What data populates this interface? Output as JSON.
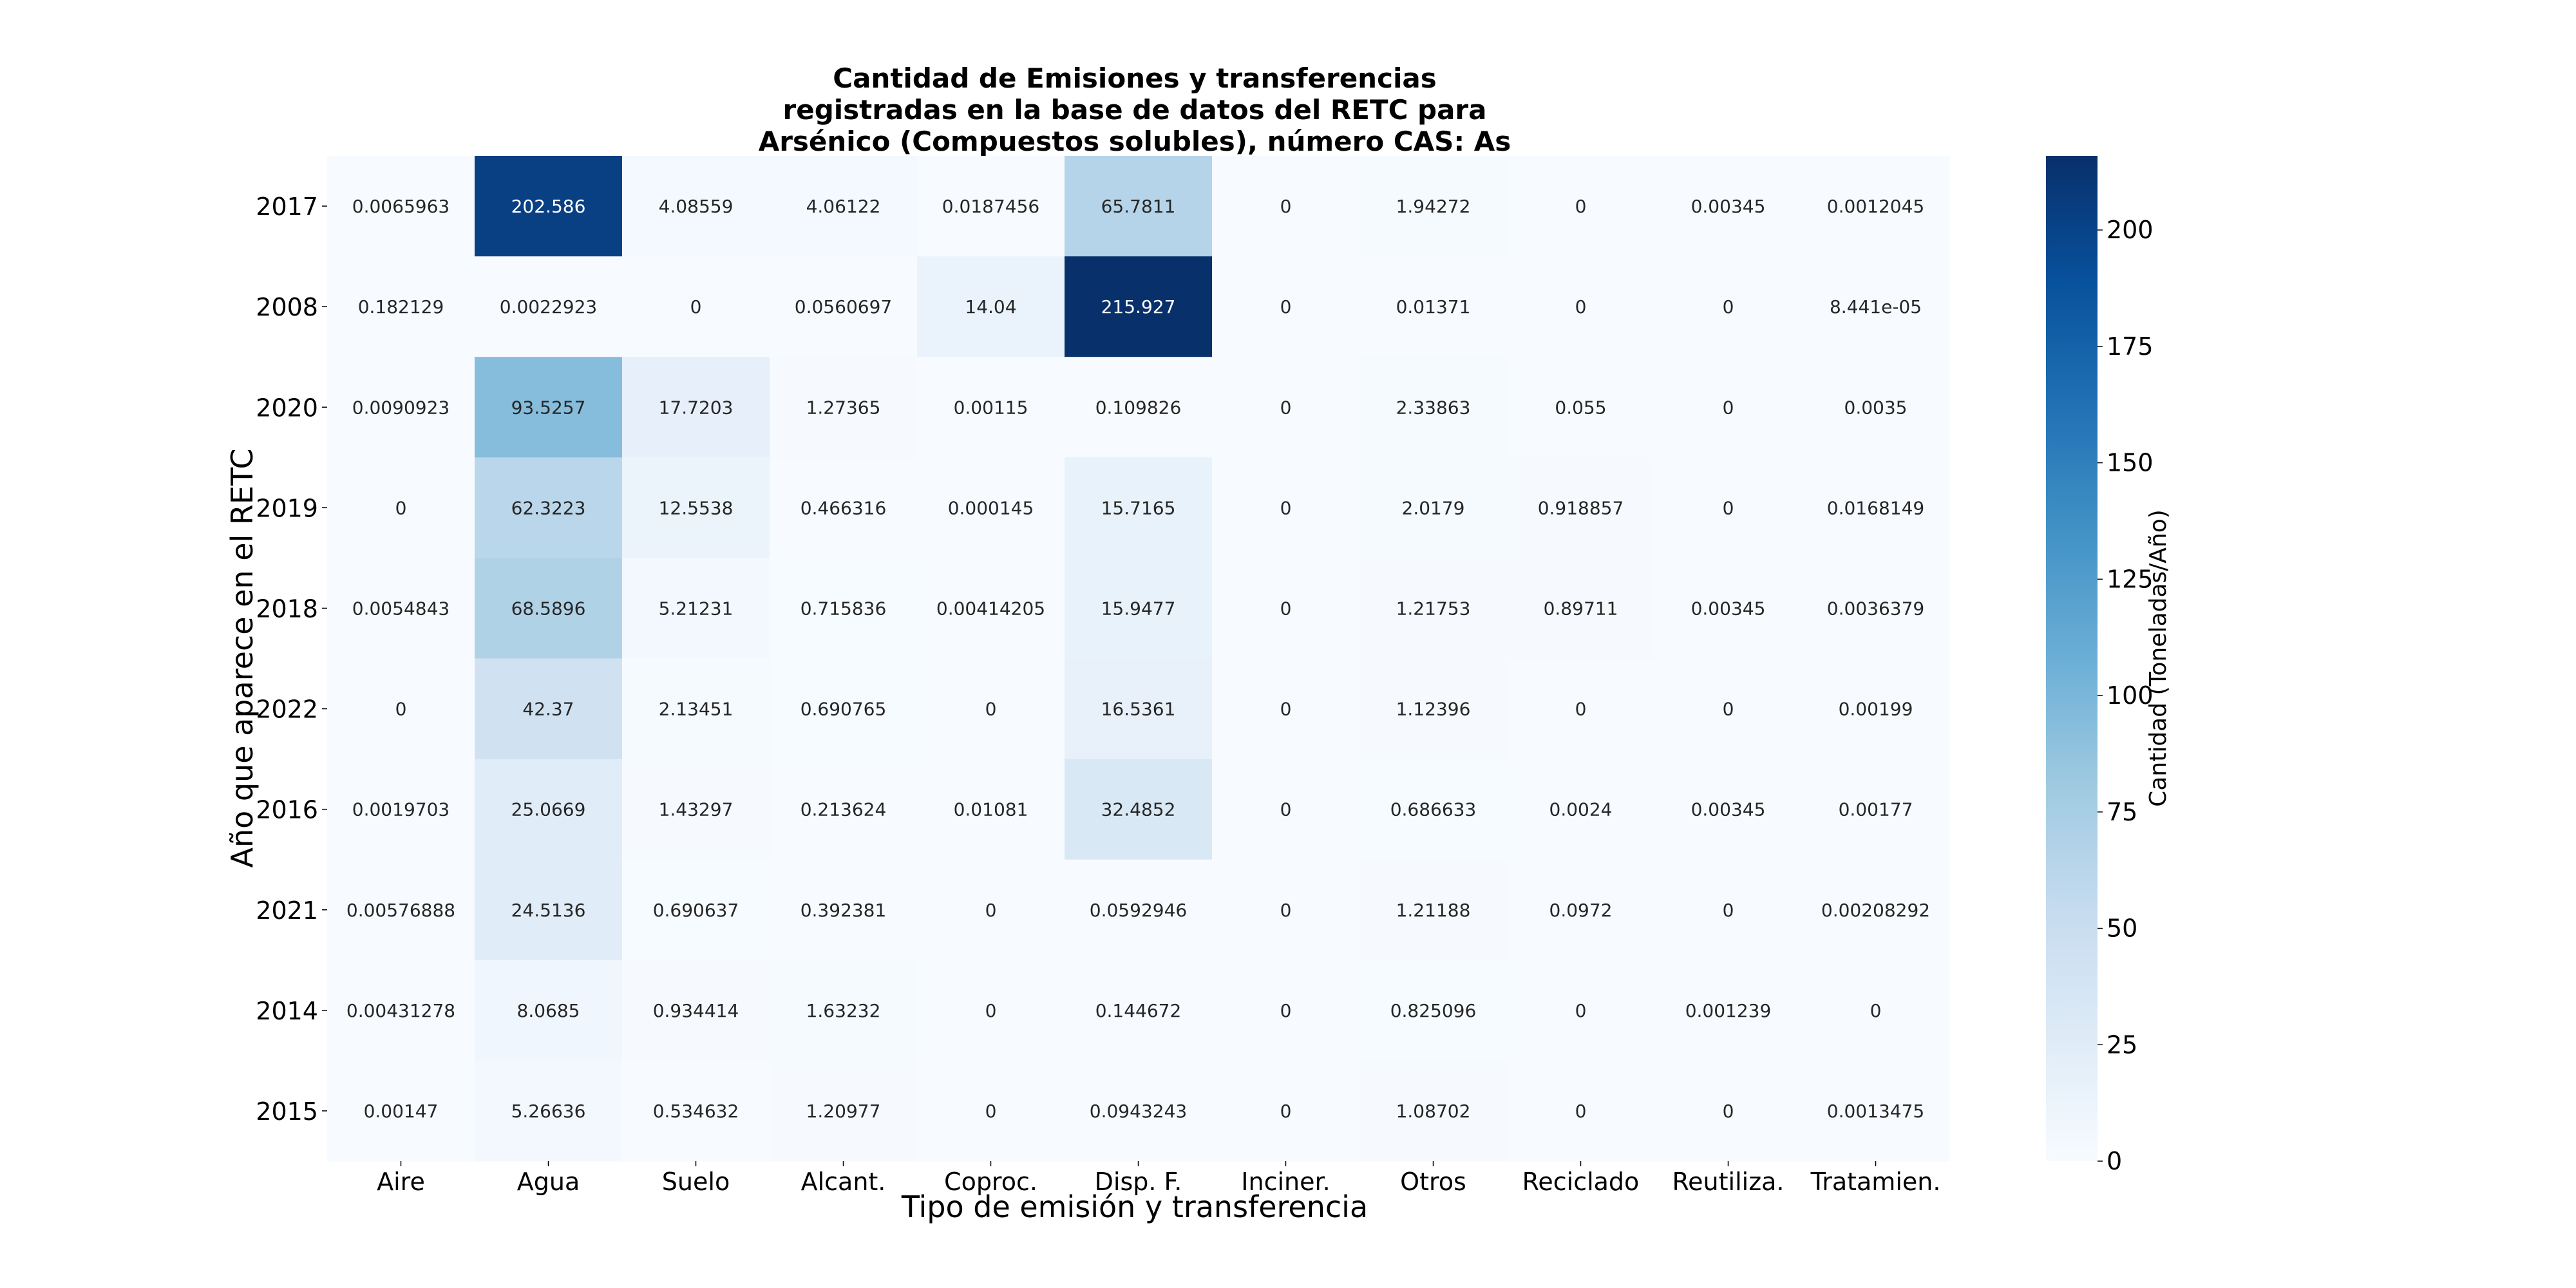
{
  "chart_data": {
    "type": "heatmap",
    "title": [
      "Cantidad de Emisiones y transferencias",
      "registradas en la base de datos del RETC para",
      "Arsénico (Compuestos solubles), número CAS: As"
    ],
    "xlabel": "Tipo de emisión y transferencia",
    "ylabel": "Año que aparece en el RETC",
    "colorbar_label": "Cantidad (Toneladas/Año)",
    "colormap": "Blues",
    "vmin": 0,
    "vmax": 215.927,
    "colorbar_ticks": [
      0,
      25,
      50,
      75,
      100,
      125,
      150,
      175,
      200
    ],
    "columns": [
      "Aire",
      "Agua",
      "Suelo",
      "Alcant.",
      "Coproc.",
      "Disp. F.",
      "Inciner.",
      "Otros",
      "Reciclado",
      "Reutiliza.",
      "Tratamien."
    ],
    "rows": [
      "2017",
      "2008",
      "2020",
      "2019",
      "2018",
      "2022",
      "2016",
      "2021",
      "2014",
      "2015"
    ],
    "values": [
      [
        0.0065963,
        202.586,
        4.08559,
        4.06122,
        0.0187456,
        65.7811,
        0,
        1.94272,
        0,
        0.00345,
        0.0012045
      ],
      [
        0.182129,
        0.0022923,
        0,
        0.0560697,
        14.04,
        215.927,
        0,
        0.01371,
        0,
        0,
        8.441e-05
      ],
      [
        0.0090923,
        93.5257,
        17.7203,
        1.27365,
        0.00115,
        0.109826,
        0,
        2.33863,
        0.055,
        0,
        0.0035
      ],
      [
        0,
        62.3223,
        12.5538,
        0.466316,
        0.000145,
        15.7165,
        0,
        2.0179,
        0.918857,
        0,
        0.0168149
      ],
      [
        0.0054843,
        68.5896,
        5.21231,
        0.715836,
        0.00414205,
        15.9477,
        0,
        1.21753,
        0.89711,
        0.00345,
        0.0036379
      ],
      [
        0,
        42.37,
        2.13451,
        0.690765,
        0,
        16.5361,
        0,
        1.12396,
        0,
        0,
        0.00199
      ],
      [
        0.0019703,
        25.0669,
        1.43297,
        0.213624,
        0.01081,
        32.4852,
        0,
        0.686633,
        0.0024,
        0.00345,
        0.00177
      ],
      [
        0.00576888,
        24.5136,
        0.690637,
        0.392381,
        0,
        0.0592946,
        0,
        1.21188,
        0.0972,
        0,
        0.00208292
      ],
      [
        0.00431278,
        8.0685,
        0.934414,
        1.63232,
        0,
        0.144672,
        0,
        0.825096,
        0,
        0.001239,
        0
      ],
      [
        0.00147,
        5.26636,
        0.534632,
        1.20977,
        0,
        0.0943243,
        0,
        1.08702,
        0,
        0,
        0.0013475
      ]
    ],
    "cell_labels": [
      [
        "0.0065963",
        "202.586",
        "4.08559",
        "4.06122",
        "0.0187456",
        "65.7811",
        "0",
        "1.94272",
        "0",
        "0.00345",
        "0.0012045"
      ],
      [
        "0.182129",
        "0.0022923",
        "0",
        "0.0560697",
        "14.04",
        "215.927",
        "0",
        "0.01371",
        "0",
        "0",
        "8.441e-05"
      ],
      [
        "0.0090923",
        "93.5257",
        "17.7203",
        "1.27365",
        "0.00115",
        "0.109826",
        "0",
        "2.33863",
        "0.055",
        "0",
        "0.0035"
      ],
      [
        "0",
        "62.3223",
        "12.5538",
        "0.466316",
        "0.000145",
        "15.7165",
        "0",
        "2.0179",
        "0.918857",
        "0",
        "0.0168149"
      ],
      [
        "0.0054843",
        "68.5896",
        "5.21231",
        "0.715836",
        "0.00414205",
        "15.9477",
        "0",
        "1.21753",
        "0.89711",
        "0.00345",
        "0.0036379"
      ],
      [
        "0",
        "42.37",
        "2.13451",
        "0.690765",
        "0",
        "16.5361",
        "0",
        "1.12396",
        "0",
        "0",
        "0.00199"
      ],
      [
        "0.0019703",
        "25.0669",
        "1.43297",
        "0.213624",
        "0.01081",
        "32.4852",
        "0",
        "0.686633",
        "0.0024",
        "0.00345",
        "0.00177"
      ],
      [
        "0.00576888",
        "24.5136",
        "0.690637",
        "0.392381",
        "0",
        "0.0592946",
        "0",
        "1.21188",
        "0.0972",
        "0",
        "0.00208292"
      ],
      [
        "0.00431278",
        "8.0685",
        "0.934414",
        "1.63232",
        "0",
        "0.144672",
        "0",
        "0.825096",
        "0",
        "0.001239",
        "0"
      ],
      [
        "0.00147",
        "5.26636",
        "0.534632",
        "1.20977",
        "0",
        "0.0943243",
        "0",
        "1.08702",
        "0",
        "0",
        "0.0013475"
      ]
    ]
  }
}
